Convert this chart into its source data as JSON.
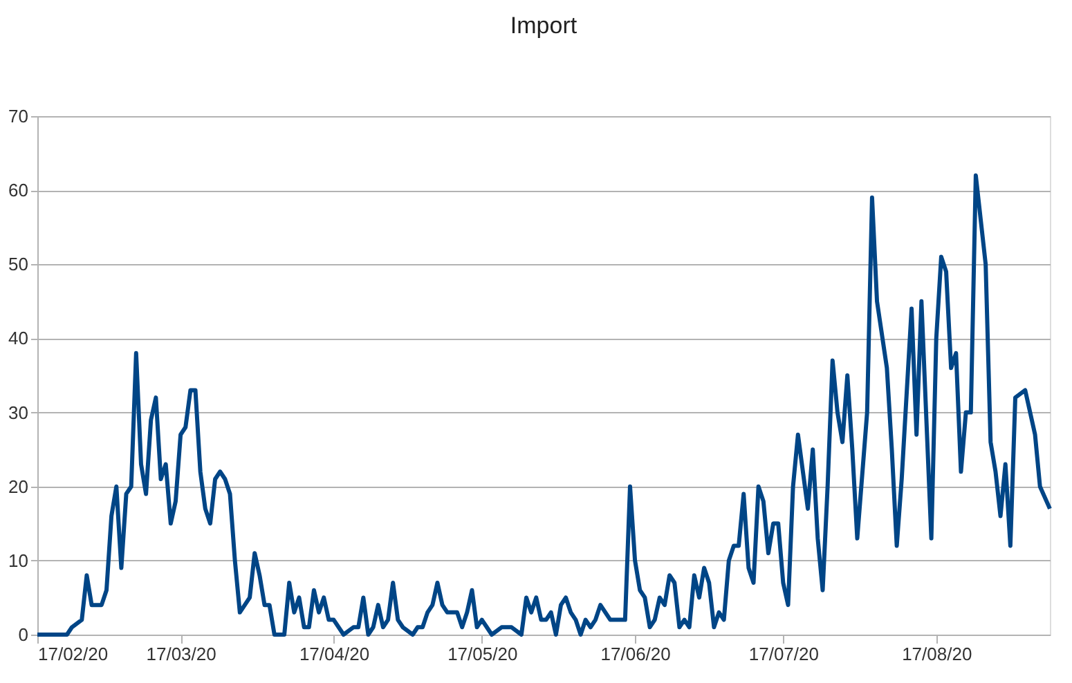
{
  "chart_data": {
    "type": "line",
    "title": "Import",
    "color": "#004586",
    "grid": "y",
    "marker": "none",
    "line_style": "solid",
    "xlim": [
      "2020-02-17",
      "2020-09-09"
    ],
    "xticks": [
      {
        "value": "2020-02-17",
        "label": "17/02/20"
      },
      {
        "value": "2020-03-17",
        "label": "17/03/20"
      },
      {
        "value": "2020-04-17",
        "label": "17/04/20"
      },
      {
        "value": "2020-05-17",
        "label": "17/05/20"
      },
      {
        "value": "2020-06-17",
        "label": "17/06/20"
      },
      {
        "value": "2020-07-17",
        "label": "17/07/20"
      },
      {
        "value": "2020-08-17",
        "label": "17/08/20"
      }
    ],
    "ylim": [
      0,
      70
    ],
    "yticks": [
      0,
      10,
      20,
      30,
      40,
      50,
      60,
      70
    ],
    "x": [
      "2020-02-17",
      "2020-02-23",
      "2020-02-24",
      "2020-02-26",
      "2020-02-27",
      "2020-02-28",
      "2020-03-01",
      "2020-03-02",
      "2020-03-03",
      "2020-03-04",
      "2020-03-05",
      "2020-03-06",
      "2020-03-07",
      "2020-03-08",
      "2020-03-09",
      "2020-03-10",
      "2020-03-11",
      "2020-03-12",
      "2020-03-13",
      "2020-03-14",
      "2020-03-15",
      "2020-03-16",
      "2020-03-17",
      "2020-03-18",
      "2020-03-19",
      "2020-03-20",
      "2020-03-21",
      "2020-03-22",
      "2020-03-23",
      "2020-03-24",
      "2020-03-25",
      "2020-03-26",
      "2020-03-27",
      "2020-03-28",
      "2020-03-29",
      "2020-03-30",
      "2020-03-31",
      "2020-04-01",
      "2020-04-02",
      "2020-04-03",
      "2020-04-04",
      "2020-04-05",
      "2020-04-07",
      "2020-04-08",
      "2020-04-09",
      "2020-04-10",
      "2020-04-11",
      "2020-04-12",
      "2020-04-13",
      "2020-04-14",
      "2020-04-15",
      "2020-04-16",
      "2020-04-17",
      "2020-04-19",
      "2020-04-21",
      "2020-04-22",
      "2020-04-23",
      "2020-04-24",
      "2020-04-25",
      "2020-04-26",
      "2020-04-27",
      "2020-04-28",
      "2020-04-29",
      "2020-04-30",
      "2020-05-01",
      "2020-05-03",
      "2020-05-04",
      "2020-05-05",
      "2020-05-06",
      "2020-05-07",
      "2020-05-08",
      "2020-05-09",
      "2020-05-10",
      "2020-05-12",
      "2020-05-13",
      "2020-05-14",
      "2020-05-15",
      "2020-05-16",
      "2020-05-17",
      "2020-05-18",
      "2020-05-19",
      "2020-05-21",
      "2020-05-23",
      "2020-05-25",
      "2020-05-26",
      "2020-05-27",
      "2020-05-28",
      "2020-05-29",
      "2020-05-30",
      "2020-05-31",
      "2020-06-01",
      "2020-06-02",
      "2020-06-03",
      "2020-06-04",
      "2020-06-05",
      "2020-06-06",
      "2020-06-07",
      "2020-06-08",
      "2020-06-09",
      "2020-06-10",
      "2020-06-11",
      "2020-06-12",
      "2020-06-15",
      "2020-06-16",
      "2020-06-17",
      "2020-06-18",
      "2020-06-19",
      "2020-06-20",
      "2020-06-21",
      "2020-06-22",
      "2020-06-23",
      "2020-06-24",
      "2020-06-25",
      "2020-06-26",
      "2020-06-27",
      "2020-06-28",
      "2020-06-29",
      "2020-06-30",
      "2020-07-01",
      "2020-07-02",
      "2020-07-03",
      "2020-07-04",
      "2020-07-05",
      "2020-07-06",
      "2020-07-07",
      "2020-07-08",
      "2020-07-09",
      "2020-07-10",
      "2020-07-11",
      "2020-07-12",
      "2020-07-13",
      "2020-07-14",
      "2020-07-15",
      "2020-07-16",
      "2020-07-17",
      "2020-07-18",
      "2020-07-19",
      "2020-07-20",
      "2020-07-21",
      "2020-07-22",
      "2020-07-23",
      "2020-07-24",
      "2020-07-25",
      "2020-07-26",
      "2020-07-27",
      "2020-07-28",
      "2020-07-29",
      "2020-07-30",
      "2020-07-31",
      "2020-08-01",
      "2020-08-03",
      "2020-08-04",
      "2020-08-05",
      "2020-08-07",
      "2020-08-08",
      "2020-08-09",
      "2020-08-10",
      "2020-08-12",
      "2020-08-13",
      "2020-08-14",
      "2020-08-16",
      "2020-08-17",
      "2020-08-18",
      "2020-08-19",
      "2020-08-20",
      "2020-08-21",
      "2020-08-22",
      "2020-08-23",
      "2020-08-24",
      "2020-08-25",
      "2020-08-27",
      "2020-08-28",
      "2020-08-29",
      "2020-08-30",
      "2020-08-31",
      "2020-09-01",
      "2020-09-02",
      "2020-09-04",
      "2020-09-06",
      "2020-09-07",
      "2020-09-09"
    ],
    "values": [
      0,
      0,
      1,
      2,
      8,
      4,
      4,
      6,
      16,
      20,
      9,
      19,
      20,
      38,
      23,
      19,
      29,
      32,
      21,
      23,
      15,
      18,
      27,
      28,
      33,
      33,
      22,
      17,
      15,
      21,
      22,
      21,
      19,
      10,
      3,
      4,
      5,
      11,
      8,
      4,
      4,
      0,
      0,
      7,
      3,
      5,
      1,
      1,
      6,
      3,
      5,
      2,
      2,
      0,
      1,
      1,
      5,
      0,
      1,
      4,
      1,
      2,
      7,
      2,
      1,
      0,
      1,
      1,
      3,
      4,
      7,
      4,
      3,
      3,
      1,
      3,
      6,
      1,
      2,
      1,
      0,
      1,
      1,
      0,
      5,
      3,
      5,
      2,
      2,
      3,
      0,
      4,
      5,
      3,
      2,
      0,
      2,
      1,
      2,
      4,
      3,
      2,
      2,
      20,
      10,
      6,
      5,
      1,
      2,
      5,
      4,
      8,
      7,
      1,
      2,
      1,
      8,
      5,
      9,
      7,
      1,
      3,
      2,
      10,
      12,
      12,
      19,
      9,
      7,
      20,
      18,
      11,
      15,
      15,
      7,
      4,
      20,
      27,
      22,
      17,
      25,
      13,
      6,
      20,
      37,
      30,
      26,
      35,
      25,
      13,
      30,
      59,
      45,
      36,
      25,
      12,
      21,
      44,
      27,
      45,
      13,
      40,
      51,
      49,
      36,
      38,
      22,
      30,
      30,
      62,
      50,
      26,
      22,
      16,
      23,
      12,
      32,
      33,
      27,
      20,
      17
    ]
  }
}
